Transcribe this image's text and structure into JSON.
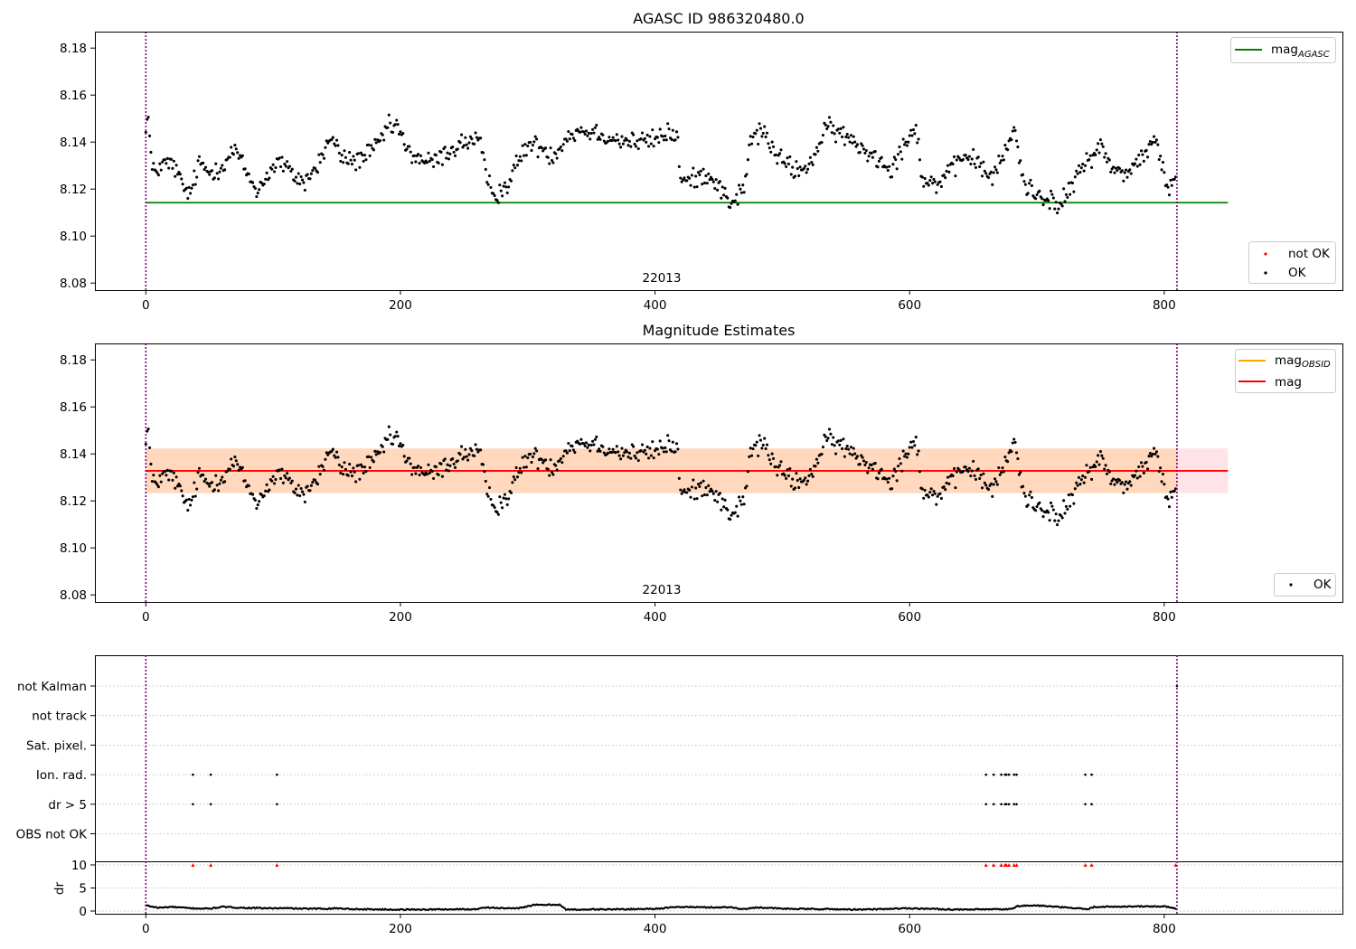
{
  "figure": {
    "background": "#ffffff"
  },
  "chart_data": [
    {
      "type": "scatter",
      "title": "AGASC ID 986320480.0",
      "xlabel": "",
      "ylabel": "",
      "xlim": [
        -40,
        940
      ],
      "ylim": [
        8.077,
        8.187
      ],
      "x_ticks": [
        "0",
        "200",
        "400",
        "600",
        "800"
      ],
      "y_ticks": [
        "8.08",
        "8.10",
        "8.12",
        "8.14",
        "8.16",
        "8.18"
      ],
      "obsid_label": "22013",
      "obs_bounds": [
        0,
        810
      ],
      "bounds_color": "#800080",
      "mag_agasc": {
        "value": 8.1142,
        "x_range": [
          0,
          850
        ],
        "color": "#008000"
      },
      "legend_top": [
        {
          "label": "mag",
          "sub": "AGASC",
          "color": "#008000",
          "kind": "line"
        }
      ],
      "legend_bottom": [
        {
          "label": "not OK",
          "color": "#ff0000",
          "kind": "dot"
        },
        {
          "label": "OK",
          "color": "#000000",
          "kind": "dot"
        }
      ],
      "series": [
        {
          "name": "OK",
          "color": "#000000",
          "source": "mag_points"
        }
      ],
      "mag_points": {
        "n": 810,
        "x_start": 0,
        "x_step": 1,
        "anchors": [
          [
            0,
            8.148
          ],
          [
            2,
            8.15
          ],
          [
            5,
            8.127
          ],
          [
            15,
            8.131
          ],
          [
            22,
            8.13
          ],
          [
            30,
            8.12
          ],
          [
            35,
            8.118
          ],
          [
            42,
            8.131
          ],
          [
            50,
            8.127
          ],
          [
            60,
            8.13
          ],
          [
            70,
            8.137
          ],
          [
            80,
            8.126
          ],
          [
            88,
            8.119
          ],
          [
            95,
            8.126
          ],
          [
            105,
            8.132
          ],
          [
            115,
            8.126
          ],
          [
            125,
            8.123
          ],
          [
            135,
            8.13
          ],
          [
            145,
            8.142
          ],
          [
            155,
            8.133
          ],
          [
            165,
            8.132
          ],
          [
            180,
            8.137
          ],
          [
            190,
            8.146
          ],
          [
            198,
            8.147
          ],
          [
            205,
            8.136
          ],
          [
            215,
            8.133
          ],
          [
            225,
            8.131
          ],
          [
            235,
            8.135
          ],
          [
            250,
            8.14
          ],
          [
            262,
            8.141
          ],
          [
            268,
            8.123
          ],
          [
            275,
            8.118
          ],
          [
            283,
            8.121
          ],
          [
            292,
            8.131
          ],
          [
            300,
            8.139
          ],
          [
            310,
            8.138
          ],
          [
            320,
            8.134
          ],
          [
            330,
            8.142
          ],
          [
            340,
            8.145
          ],
          [
            355,
            8.144
          ],
          [
            370,
            8.141
          ],
          [
            385,
            8.14
          ],
          [
            400,
            8.141
          ],
          [
            410,
            8.144
          ],
          [
            418,
            8.142
          ],
          [
            420,
            8.123
          ],
          [
            430,
            8.124
          ],
          [
            440,
            8.127
          ],
          [
            450,
            8.122
          ],
          [
            458,
            8.114
          ],
          [
            465,
            8.117
          ],
          [
            470,
            8.12
          ],
          [
            475,
            8.141
          ],
          [
            485,
            8.145
          ],
          [
            495,
            8.134
          ],
          [
            505,
            8.13
          ],
          [
            515,
            8.127
          ],
          [
            525,
            8.134
          ],
          [
            535,
            8.146
          ],
          [
            545,
            8.144
          ],
          [
            555,
            8.14
          ],
          [
            570,
            8.135
          ],
          [
            585,
            8.129
          ],
          [
            595,
            8.138
          ],
          [
            605,
            8.148
          ],
          [
            610,
            8.124
          ],
          [
            620,
            8.122
          ],
          [
            632,
            8.127
          ],
          [
            645,
            8.135
          ],
          [
            655,
            8.13
          ],
          [
            665,
            8.125
          ],
          [
            675,
            8.135
          ],
          [
            682,
            8.146
          ],
          [
            690,
            8.122
          ],
          [
            700,
            8.118
          ],
          [
            710,
            8.116
          ],
          [
            718,
            8.112
          ],
          [
            728,
            8.122
          ],
          [
            740,
            8.133
          ],
          [
            750,
            8.138
          ],
          [
            760,
            8.128
          ],
          [
            770,
            8.127
          ],
          [
            782,
            8.133
          ],
          [
            792,
            8.141
          ],
          [
            798,
            8.131
          ],
          [
            802,
            8.12
          ],
          [
            809,
            8.122
          ]
        ],
        "noise": 0.0035
      }
    },
    {
      "type": "scatter",
      "title": "Magnitude Estimates",
      "xlabel": "",
      "ylabel": "",
      "xlim": [
        -40,
        940
      ],
      "ylim": [
        8.077,
        8.187
      ],
      "x_ticks": [
        "0",
        "200",
        "400",
        "600",
        "800"
      ],
      "y_ticks": [
        "8.08",
        "8.10",
        "8.12",
        "8.14",
        "8.16",
        "8.18"
      ],
      "obsid_label": "22013",
      "obs_bounds": [
        0,
        810
      ],
      "bounds_color": "#800080",
      "mag": {
        "value": 8.1328,
        "x_range": [
          0,
          850
        ],
        "color": "#ff0000"
      },
      "mag_obsid": {
        "value": 8.1328,
        "x_range": [
          0,
          810
        ],
        "color": "#ffa500"
      },
      "mag_band": {
        "low": 8.1233,
        "high": 8.1423,
        "x_range": [
          0,
          850
        ],
        "color": "#ffc0cb"
      },
      "mag_obsid_band": {
        "low": 8.1233,
        "high": 8.1423,
        "x_range": [
          0,
          810
        ],
        "color": "#ffa500"
      },
      "legend_top": [
        {
          "label": "mag",
          "sub": "OBSID",
          "color": "#ffa500",
          "kind": "line"
        },
        {
          "label": "mag",
          "sub": "",
          "color": "#ff0000",
          "kind": "line"
        }
      ],
      "legend_bottom": [
        {
          "label": "OK",
          "color": "#000000",
          "kind": "dot"
        }
      ],
      "series": [
        {
          "name": "OK",
          "color": "#000000",
          "source": "mag_points"
        }
      ]
    },
    {
      "type": "scatter",
      "title": "",
      "xlim": [
        -40,
        940
      ],
      "x_ticks": [
        "0",
        "200",
        "400",
        "600",
        "800"
      ],
      "obs_bounds": [
        0,
        810
      ],
      "bounds_color": "#800080",
      "flags": [
        "not Kalman",
        "not track",
        "Sat. pixel.",
        "Ion. rad.",
        "dr > 5",
        "OBS not OK"
      ],
      "flag_points": {
        "Ion. rad.": [
          37,
          51,
          103,
          660,
          666,
          672,
          675,
          676,
          678,
          682,
          684,
          738,
          743
        ],
        "dr > 5": [
          37,
          51,
          103,
          660,
          666,
          672,
          675,
          676,
          678,
          682,
          684,
          738,
          743
        ],
        "not Kalman": [
          810
        ]
      },
      "dr": {
        "ylabel": "dr",
        "y_ticks": [
          "0",
          "5",
          "10"
        ],
        "ylim": [
          0,
          10
        ],
        "red_points_x": [
          37,
          51,
          103,
          660,
          666,
          672,
          675,
          676,
          678,
          682,
          684,
          738,
          743,
          809
        ],
        "red_color": "#ff0000",
        "anchors": [
          [
            0,
            1.2
          ],
          [
            10,
            0.7
          ],
          [
            20,
            0.9
          ],
          [
            35,
            0.6
          ],
          [
            50,
            0.5
          ],
          [
            60,
            0.9
          ],
          [
            75,
            0.7
          ],
          [
            95,
            0.6
          ],
          [
            110,
            0.6
          ],
          [
            125,
            0.5
          ],
          [
            140,
            0.5
          ],
          [
            150,
            0.6
          ],
          [
            165,
            0.4
          ],
          [
            200,
            0.3
          ],
          [
            260,
            0.4
          ],
          [
            265,
            0.8
          ],
          [
            290,
            0.5
          ],
          [
            305,
            1.3
          ],
          [
            325,
            1.4
          ],
          [
            330,
            0.3
          ],
          [
            380,
            0.4
          ],
          [
            400,
            0.5
          ],
          [
            420,
            0.9
          ],
          [
            440,
            0.8
          ],
          [
            460,
            0.8
          ],
          [
            470,
            0.4
          ],
          [
            480,
            0.8
          ],
          [
            500,
            0.5
          ],
          [
            540,
            0.4
          ],
          [
            560,
            0.3
          ],
          [
            600,
            0.6
          ],
          [
            640,
            0.3
          ],
          [
            680,
            0.4
          ],
          [
            685,
            1.1
          ],
          [
            700,
            1.2
          ],
          [
            720,
            0.8
          ],
          [
            740,
            0.4
          ],
          [
            745,
            0.9
          ],
          [
            780,
            1.0
          ],
          [
            800,
            1.0
          ],
          [
            809,
            0.5
          ]
        ],
        "noise": 0.12
      }
    }
  ]
}
